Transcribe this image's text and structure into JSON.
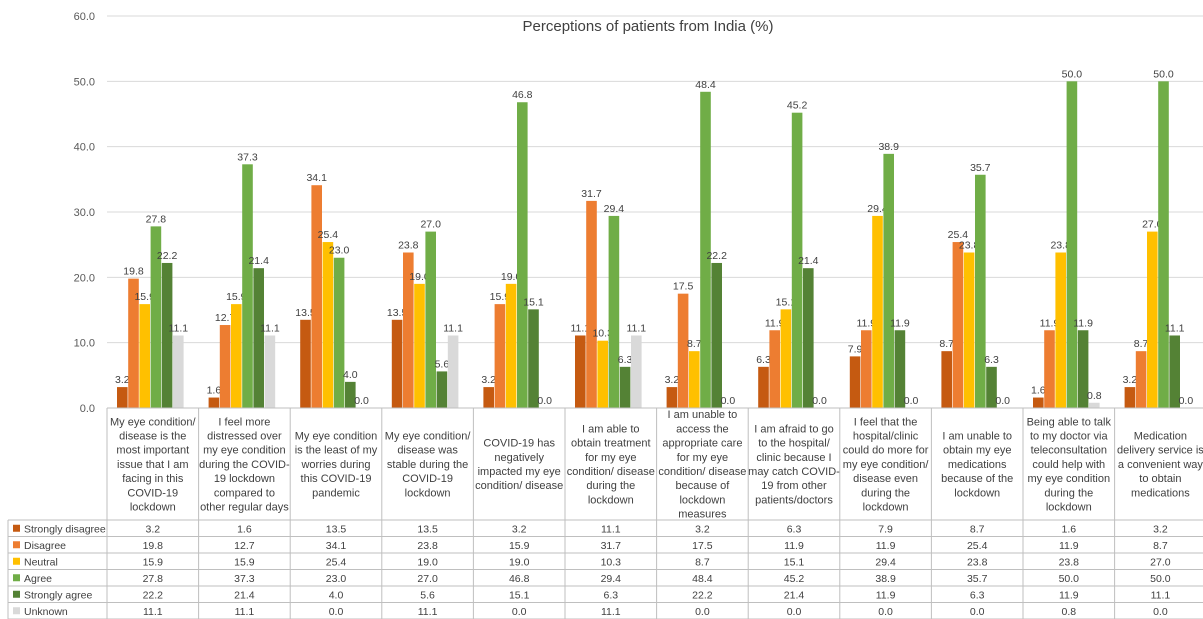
{
  "chart_data": {
    "type": "bar",
    "title": "Perceptions of patients from India (%)",
    "xlabel": "",
    "ylabel": "",
    "ylim": [
      0,
      60
    ],
    "y_ticks": [
      "0.0",
      "10.0",
      "20.0",
      "30.0",
      "40.0",
      "50.0",
      "60.0"
    ],
    "gridlines": true,
    "legend_position": "data-table-left",
    "categories": [
      "My eye condition/ disease is the most important issue that I am facing in this COVID-19 lockdown",
      "I feel more distressed over my eye condition during the COVID-19 lockdown compared to other regular days",
      "My eye condition is the least of my worries during this COVID-19 pandemic",
      "My eye condition/ disease was stable during the COVID-19 lockdown",
      "COVID-19 has negatively impacted my eye condition/ disease",
      "I am able to obtain treatment for my eye condition/ disease during the lockdown",
      "I am unable to access the appropriate care for my eye condition/ disease because of lockdown measures",
      "I am afraid to go to the hospital/ clinic because I may catch COVID-19 from other patients/doctors",
      "I feel that the hospital/clinic could do more for my eye condition/ disease even during the lockdown",
      "I am unable to obtain my eye medications because of the lockdown",
      "Being able to talk to my doctor via teleconsultation could help with my eye condition during the lockdown",
      "Medication delivery service is a convenient way to obtain medications"
    ],
    "category_lines": [
      [
        "My eye condition/",
        "disease is the",
        "most important",
        "issue that I am",
        "facing in this",
        "COVID-19",
        "lockdown"
      ],
      [
        "I feel more",
        "distressed over",
        "my eye condition",
        "during the COVID-",
        "19 lockdown",
        "compared to",
        "other regular days"
      ],
      [
        "My eye condition",
        "is the least of my",
        "worries during",
        "this COVID-19",
        "pandemic"
      ],
      [
        "My eye condition/",
        "disease was",
        "stable during the",
        "COVID-19",
        "lockdown"
      ],
      [
        "COVID-19 has",
        "negatively",
        "impacted my eye",
        "condition/ disease"
      ],
      [
        "I am able to",
        "obtain treatment",
        "for my eye",
        "condition/ disease",
        "during the",
        "lockdown"
      ],
      [
        "I am unable to",
        "access the",
        "appropriate care",
        "for my eye",
        "condition/ disease",
        "because of",
        "lockdown",
        "measures"
      ],
      [
        "I am afraid to go",
        "to the hospital/",
        "clinic because I",
        "may catch COVID-",
        "19 from other",
        "patients/doctors"
      ],
      [
        "I feel that the",
        "hospital/clinic",
        "could do more for",
        "my eye condition/",
        "disease even",
        "during the",
        "lockdown"
      ],
      [
        "I am unable to",
        "obtain my eye",
        "medications",
        "because of the",
        "lockdown"
      ],
      [
        "Being able to talk",
        "to my doctor via",
        "teleconsultation",
        "could help with",
        "my eye condition",
        "during the",
        "lockdown"
      ],
      [
        "Medication",
        "delivery service is",
        "a convenient way",
        "to obtain",
        "medications"
      ]
    ],
    "series": [
      {
        "name": "Strongly disagree",
        "color": "#c55a11",
        "values": [
          3.2,
          1.6,
          13.5,
          13.5,
          3.2,
          11.1,
          3.2,
          6.3,
          7.9,
          8.7,
          1.6,
          3.2
        ]
      },
      {
        "name": "Disagree",
        "color": "#ed7d31",
        "values": [
          19.8,
          12.7,
          34.1,
          23.8,
          15.9,
          31.7,
          17.5,
          11.9,
          11.9,
          25.4,
          11.9,
          8.7
        ]
      },
      {
        "name": "Neutral",
        "color": "#ffc000",
        "values": [
          15.9,
          15.9,
          25.4,
          19.0,
          19.0,
          10.3,
          8.7,
          15.1,
          29.4,
          23.8,
          23.8,
          27.0
        ]
      },
      {
        "name": "Agree",
        "color": "#70ad47",
        "values": [
          27.8,
          37.3,
          23.0,
          27.0,
          46.8,
          29.4,
          48.4,
          45.2,
          38.9,
          35.7,
          50.0,
          50.0
        ]
      },
      {
        "name": "Strongly agree",
        "color": "#548235",
        "values": [
          22.2,
          21.4,
          4.0,
          5.6,
          15.1,
          6.3,
          22.2,
          21.4,
          11.9,
          6.3,
          11.9,
          11.1
        ]
      },
      {
        "name": "Unknown",
        "color": "#d9d9d9",
        "values": [
          11.1,
          11.1,
          0.0,
          11.1,
          0.0,
          11.1,
          0.0,
          0.0,
          0.0,
          0.0,
          0.8,
          0.0
        ]
      }
    ]
  }
}
